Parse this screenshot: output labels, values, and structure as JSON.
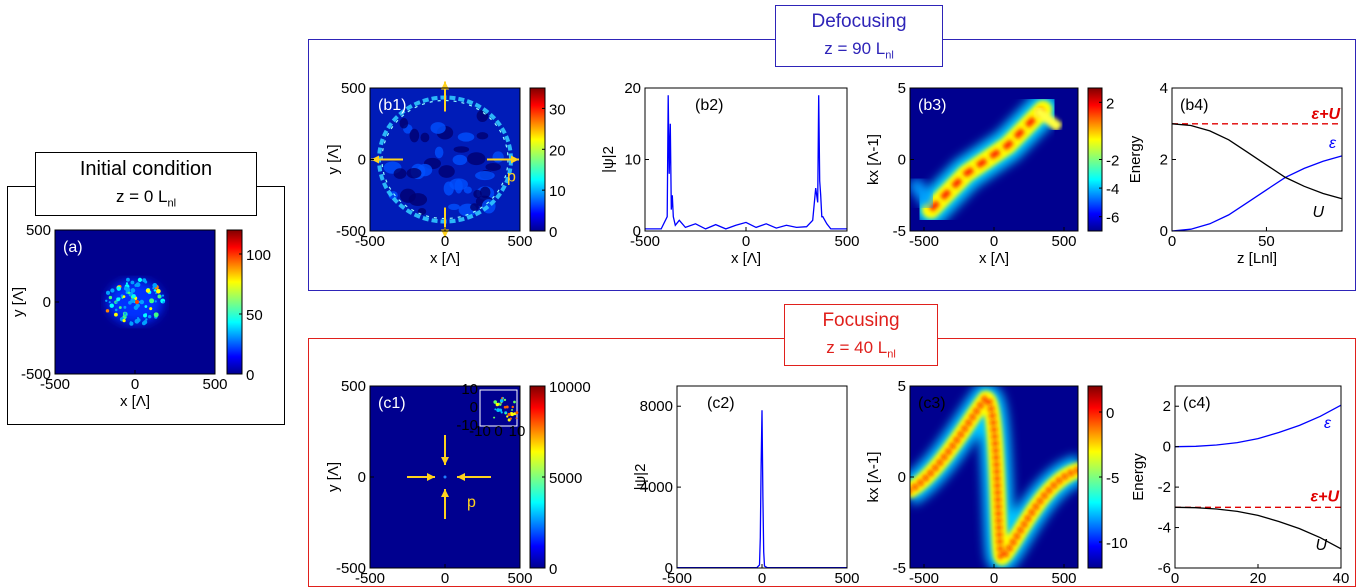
{
  "colors": {
    "defocus": "#2e24b8",
    "focus": "#e0201c",
    "blue": "#0000ff",
    "red": "#e00000",
    "arrow": "#ffd21e"
  },
  "labels": {
    "initial_title": "Initial condition",
    "initial_z": "z = 0 L",
    "defocus_title": "Defocusing",
    "defocus_z": "z = 90 L",
    "focus_title": "Focusing",
    "focus_z": "z = 40 L",
    "nl_sub": "nl"
  },
  "chart_data": [
    {
      "id": "a",
      "type": "heatmap",
      "tag": "(a)",
      "xlabel": "x [Λ]",
      "ylabel": "y [Λ]",
      "xlim": [
        -500,
        500
      ],
      "ylim": [
        -500,
        500
      ],
      "xticks": [
        "-500",
        "0",
        "500"
      ],
      "yticks": [
        "-500",
        "0",
        "500"
      ],
      "colorbar": {
        "ticks": [
          "0",
          "50",
          "100"
        ],
        "max": 120
      }
    },
    {
      "id": "b1",
      "type": "heatmap",
      "tag": "(b1)",
      "xlabel": "x [Λ]",
      "ylabel": "y [Λ]",
      "xlim": [
        -500,
        500
      ],
      "ylim": [
        -500,
        500
      ],
      "xticks": [
        "-500",
        "0",
        "500"
      ],
      "yticks": [
        "-500",
        "0",
        "500"
      ],
      "colorbar": {
        "ticks": [
          "0",
          "10",
          "20",
          "30"
        ],
        "max": 35
      },
      "annotation": "p"
    },
    {
      "id": "b2",
      "type": "line",
      "tag": "(b2)",
      "xlabel": "x [Λ]",
      "ylabel": "|ψ|2",
      "xlim": [
        -500,
        500
      ],
      "ylim": [
        0,
        20
      ],
      "xticks": [
        "-500",
        "0",
        "500"
      ],
      "yticks": [
        "0",
        "10",
        "20"
      ],
      "x": [
        -500,
        -420,
        -390,
        -385,
        -380,
        -375,
        -370,
        -365,
        -360,
        -350,
        -330,
        -300,
        -250,
        -200,
        -150,
        -100,
        -50,
        0,
        50,
        100,
        150,
        200,
        250,
        300,
        330,
        345,
        355,
        360,
        365,
        370,
        375,
        380,
        400,
        420,
        500
      ],
      "y": [
        0.3,
        0.3,
        2,
        19,
        8,
        15,
        3,
        5,
        2,
        0.8,
        1.5,
        0.5,
        1,
        0.3,
        0.9,
        0.3,
        0.8,
        1.2,
        0.5,
        1,
        0.4,
        0.8,
        0.5,
        0.6,
        1.5,
        6,
        4,
        19,
        7,
        5,
        2,
        2,
        1,
        0.3,
        0.3
      ]
    },
    {
      "id": "b3",
      "type": "heatmap",
      "tag": "(b3)",
      "xlabel": "x [Λ]",
      "ylabel": "kx [Λ-1]",
      "xlim": [
        -600,
        600
      ],
      "ylim": [
        -5,
        5
      ],
      "xticks": [
        "-500",
        "0",
        "500"
      ],
      "yticks": [
        "-5",
        "0",
        "5"
      ],
      "colorbar": {
        "ticks": [
          "-6",
          "-4",
          "-2",
          "2"
        ],
        "min": -7,
        "max": 3
      }
    },
    {
      "id": "b4",
      "type": "line",
      "tag": "(b4)",
      "xlabel": "z [Lnl]",
      "ylabel": "Energy",
      "xlim": [
        0,
        90
      ],
      "ylim": [
        0,
        4
      ],
      "xticks": [
        "0",
        "50"
      ],
      "yticks": [
        "0",
        "2",
        "4"
      ],
      "series": [
        {
          "name": "ε+U",
          "style": "dashed",
          "x": [
            0,
            90
          ],
          "y": [
            3,
            3
          ]
        },
        {
          "name": "ε",
          "x": [
            0,
            10,
            20,
            30,
            40,
            50,
            60,
            70,
            80,
            90
          ],
          "y": [
            0,
            0.05,
            0.2,
            0.45,
            0.8,
            1.15,
            1.5,
            1.75,
            1.95,
            2.1
          ]
        },
        {
          "name": "U",
          "x": [
            0,
            10,
            20,
            30,
            40,
            50,
            60,
            70,
            80,
            90
          ],
          "y": [
            3,
            2.95,
            2.8,
            2.55,
            2.2,
            1.85,
            1.5,
            1.25,
            1.05,
            0.9
          ]
        }
      ]
    },
    {
      "id": "c1",
      "type": "heatmap",
      "tag": "(c1)",
      "xlabel": "x [Λ]",
      "ylabel": "y [Λ]",
      "xlim": [
        -500,
        500
      ],
      "ylim": [
        -500,
        500
      ],
      "xticks": [
        "-500",
        "0",
        "500"
      ],
      "yticks": [
        "-500",
        "0",
        "500"
      ],
      "colorbar": {
        "ticks": [
          "0",
          "5000",
          "10000"
        ],
        "max": 10000
      },
      "annotation": "p",
      "inset": {
        "xticks": [
          "-10",
          "0",
          "10"
        ],
        "yticks": [
          "-10",
          "0",
          "10"
        ]
      }
    },
    {
      "id": "c2",
      "type": "line",
      "tag": "(c2)",
      "xlabel": "x [Λ]",
      "ylabel": "|ψ|2",
      "xlim": [
        -500,
        500
      ],
      "ylim": [
        0,
        9000
      ],
      "xticks": [
        "-500",
        "0",
        "500"
      ],
      "yticks": [
        "0",
        "4000",
        "8000"
      ],
      "x": [
        -500,
        -30,
        -15,
        -10,
        -5,
        0,
        5,
        10,
        15,
        30,
        500
      ],
      "y": [
        20,
        20,
        150,
        1500,
        5000,
        7800,
        3500,
        800,
        100,
        20,
        20
      ]
    },
    {
      "id": "c3",
      "type": "heatmap",
      "tag": "(c3)",
      "xlabel": "x [Λ]",
      "ylabel": "kx [Λ-1]",
      "xlim": [
        -600,
        600
      ],
      "ylim": [
        -5,
        5
      ],
      "xticks": [
        "-500",
        "0",
        "500"
      ],
      "yticks": [
        "-5",
        "0",
        "5"
      ],
      "colorbar": {
        "ticks": [
          "-10",
          "-5",
          "0"
        ],
        "min": -12,
        "max": 2
      }
    },
    {
      "id": "c4",
      "type": "line",
      "tag": "(c4)",
      "xlabel": "z [Lnl]",
      "ylabel": "Energy",
      "xlim": [
        0,
        40
      ],
      "ylim": [
        -6,
        3
      ],
      "xticks": [
        "0",
        "20",
        "40"
      ],
      "yticks": [
        "-6",
        "-4",
        "-2",
        "0",
        "2"
      ],
      "series": [
        {
          "name": "ε",
          "x": [
            0,
            5,
            10,
            15,
            20,
            25,
            30,
            35,
            40
          ],
          "y": [
            0,
            0.02,
            0.08,
            0.2,
            0.4,
            0.7,
            1.05,
            1.5,
            2.05
          ]
        },
        {
          "name": "ε+U",
          "style": "dashed",
          "x": [
            0,
            40
          ],
          "y": [
            -3,
            -3
          ]
        },
        {
          "name": "U",
          "x": [
            0,
            5,
            10,
            15,
            20,
            25,
            30,
            35,
            40
          ],
          "y": [
            -3,
            -3.02,
            -3.08,
            -3.2,
            -3.4,
            -3.7,
            -4.05,
            -4.5,
            -5.05
          ]
        }
      ]
    }
  ]
}
